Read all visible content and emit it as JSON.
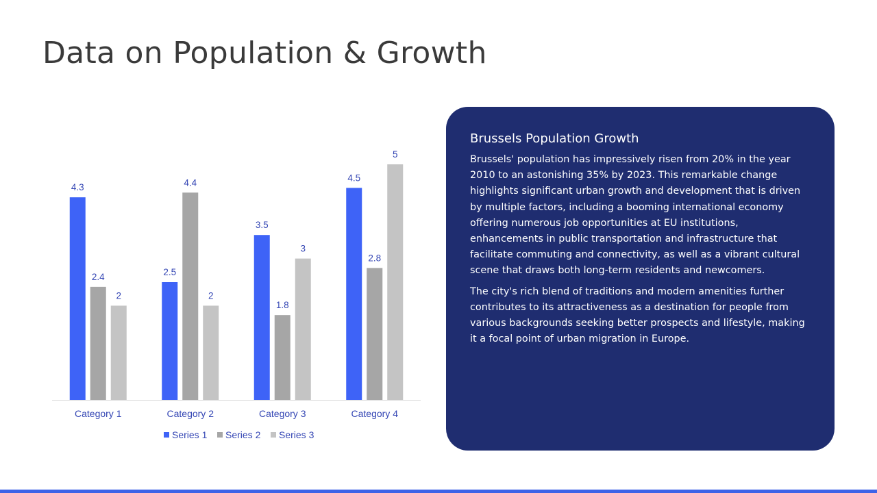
{
  "slide": {
    "title": "Data on Population & Growth"
  },
  "panel": {
    "heading": "Brussels Population Growth",
    "paragraphs": [
      "Brussels' population has impressively risen from 20% in the year 2010 to an astonishing 35% by 2023. This remarkable change highlights significant urban growth and development that is driven by multiple factors, including a booming international economy offering numerous job opportunities at EU institutions, enhancements in public transportation and infrastructure that facilitate commuting and connectivity, as well as a vibrant cultural scene that draws both long-term residents and newcomers.",
      "The city's rich blend of traditions and modern amenities further contributes to its attractiveness as a destination for people from various backgrounds seeking better prospects and lifestyle, making it a focal point of urban migration in Europe."
    ],
    "background_color": "#1f2d70"
  },
  "chart_data": {
    "type": "bar",
    "categories": [
      "Category 1",
      "Category 2",
      "Category 3",
      "Category 4"
    ],
    "series": [
      {
        "name": "Series 1",
        "values": [
          4.3,
          2.5,
          3.5,
          4.5
        ],
        "color": "#3e63f7"
      },
      {
        "name": "Series 2",
        "values": [
          2.4,
          4.4,
          1.8,
          2.8
        ],
        "color": "#a6a6a6"
      },
      {
        "name": "Series 3",
        "values": [
          2,
          2,
          3,
          5
        ],
        "color": "#c4c4c4"
      }
    ],
    "ylim": [
      0,
      5
    ],
    "data_labels": true,
    "grid": false,
    "legend_position": "bottom",
    "label_color": "#3446b4"
  },
  "colors": {
    "accent_bar": "#3e63e8",
    "title_text": "#3a3a3a"
  }
}
